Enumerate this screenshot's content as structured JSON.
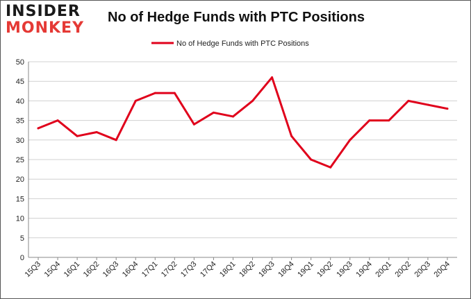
{
  "logo": {
    "line1": "INSIDER",
    "line2": "MONKEY"
  },
  "chart_data": {
    "type": "line",
    "title": "No of Hedge Funds with PTC Positions",
    "xlabel": "",
    "ylabel": "",
    "ylim": [
      0,
      50
    ],
    "yticks": [
      0,
      5,
      10,
      15,
      20,
      25,
      30,
      35,
      40,
      45,
      50
    ],
    "categories": [
      "15Q3",
      "15Q4",
      "16Q1",
      "16Q2",
      "16Q3",
      "16Q4",
      "17Q1",
      "17Q2",
      "17Q3",
      "17Q4",
      "18Q1",
      "18Q2",
      "18Q3",
      "18Q4",
      "19Q1",
      "19Q2",
      "19Q3",
      "19Q4",
      "20Q1",
      "20Q2",
      "20Q3",
      "20Q4"
    ],
    "series": [
      {
        "name": "No of Hedge Funds with PTC Positions",
        "color": "#e0001b",
        "values": [
          33,
          35,
          31,
          32,
          30,
          40,
          42,
          42,
          34,
          37,
          36,
          40,
          46,
          31,
          25,
          23,
          30,
          35,
          35,
          40,
          39,
          38
        ]
      }
    ],
    "legend_position": "top-center",
    "grid": true
  }
}
